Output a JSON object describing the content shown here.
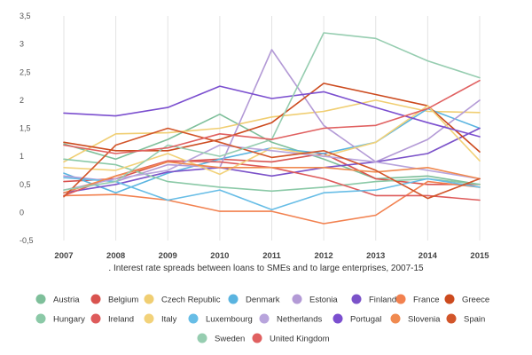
{
  "chart_data": {
    "type": "line",
    "title": "",
    "caption": ". Interest rate spreads between loans to SMEs and to large enterprises, 2007-15",
    "xlabel": "",
    "ylabel": "",
    "x": [
      "2007",
      "2008",
      "2009",
      "2010",
      "2011",
      "2012",
      "2013",
      "2014",
      "2015"
    ],
    "y_ticks": [
      "3,5",
      "3",
      "2,5",
      "2",
      "1,5",
      "1",
      "0,5",
      "0",
      "-0,5"
    ],
    "y_tick_values": [
      3.5,
      3,
      2.5,
      2,
      1.5,
      1,
      0.5,
      0,
      -0.5
    ],
    "ylim": [
      -0.5,
      3.5
    ],
    "grid": "vertical",
    "legend_position": "bottom",
    "series": [
      {
        "name": "Austria",
        "color": "#7ebf9a",
        "values": [
          1.22,
          0.95,
          1.3,
          1.75,
          1.25,
          0.95,
          0.6,
          0.65,
          0.5
        ]
      },
      {
        "name": "Belgium",
        "color": "#d9534f",
        "values": [
          0.55,
          0.6,
          0.9,
          0.95,
          0.9,
          1.05,
          0.6,
          0.5,
          0.5
        ]
      },
      {
        "name": "Czech Republic",
        "color": "#f0ce72",
        "values": [
          0.9,
          1.4,
          1.42,
          1.5,
          1.7,
          1.8,
          2.0,
          1.8,
          1.78
        ]
      },
      {
        "name": "Denmark",
        "color": "#5ab4e0",
        "values": [
          0.7,
          0.35,
          0.7,
          0.95,
          1.15,
          1.05,
          1.25,
          1.85,
          1.5
        ]
      },
      {
        "name": "Estonia",
        "color": "#b39ad6",
        "values": [
          0.65,
          0.55,
          0.85,
          0.8,
          2.9,
          1.55,
          0.9,
          1.3,
          2.0
        ]
      },
      {
        "name": "Finland",
        "color": "#7b52c9",
        "values": [
          0.35,
          0.5,
          0.72,
          0.8,
          0.65,
          0.8,
          0.9,
          1.05,
          1.5
        ]
      },
      {
        "name": "France",
        "color": "#f2814f",
        "values": [
          0.3,
          0.32,
          0.22,
          0.02,
          0.02,
          -0.2,
          -0.05,
          0.55,
          0.45
        ]
      },
      {
        "name": "Greece",
        "color": "#cc4a1e",
        "values": [
          1.25,
          1.1,
          1.1,
          1.3,
          1.6,
          2.3,
          2.1,
          1.9,
          1.08
        ]
      },
      {
        "name": "Hungary",
        "color": "#8bc9a7",
        "values": [
          0.95,
          0.85,
          0.55,
          0.45,
          0.38,
          0.45,
          0.55,
          0.6,
          0.5
        ]
      },
      {
        "name": "Ireland",
        "color": "#de5b5b",
        "values": [
          0.3,
          0.65,
          0.92,
          0.9,
          0.8,
          0.6,
          0.3,
          0.3,
          0.22
        ]
      },
      {
        "name": "Italy",
        "color": "#f2d27a",
        "values": [
          0.8,
          0.75,
          1.05,
          0.68,
          1.15,
          1.0,
          1.25,
          1.9,
          0.92
        ]
      },
      {
        "name": "Luxembourg",
        "color": "#67bde6",
        "values": [
          0.62,
          0.55,
          0.22,
          0.4,
          0.05,
          0.35,
          0.4,
          0.6,
          0.45
        ]
      },
      {
        "name": "Netherlands",
        "color": "#b8a4dc",
        "values": [
          0.4,
          0.6,
          0.75,
          1.2,
          1.1,
          1.0,
          0.9,
          0.75,
          0.6
        ]
      },
      {
        "name": "Portugal",
        "color": "#7b4fcf",
        "values": [
          1.77,
          1.72,
          1.87,
          2.25,
          2.03,
          2.15,
          1.87,
          1.6,
          1.35
        ]
      },
      {
        "name": "Slovenia",
        "color": "#f08a50",
        "values": [
          0.35,
          0.65,
          0.9,
          0.8,
          0.8,
          0.8,
          0.72,
          0.8,
          0.6
        ]
      },
      {
        "name": "Spain",
        "color": "#d2552a",
        "values": [
          0.28,
          1.2,
          1.5,
          1.25,
          0.98,
          1.1,
          0.75,
          0.25,
          0.6
        ]
      },
      {
        "name": "Sweden",
        "color": "#96cdb0",
        "values": [
          0.4,
          0.55,
          1.2,
          1.0,
          1.3,
          3.2,
          3.1,
          2.7,
          2.4
        ]
      },
      {
        "name": "United Kingdom",
        "color": "#e06060",
        "values": [
          1.2,
          1.05,
          1.15,
          1.4,
          1.3,
          1.5,
          1.55,
          1.85,
          2.35
        ]
      }
    ]
  }
}
